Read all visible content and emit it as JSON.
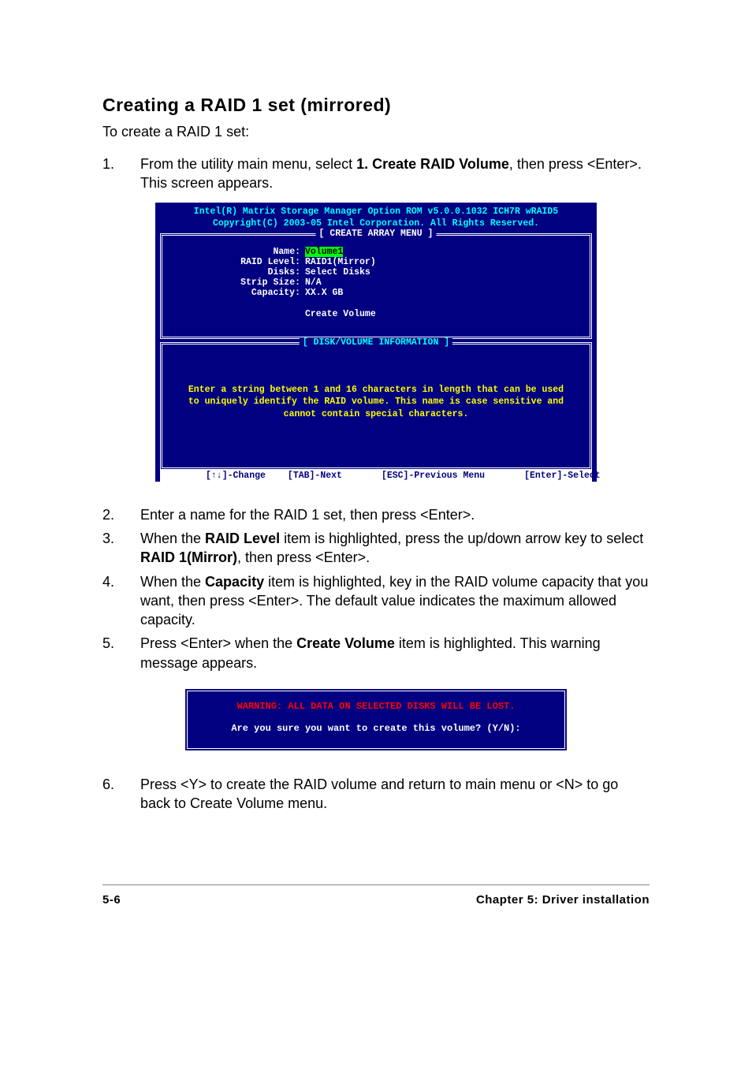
{
  "section_title": "Creating a RAID 1 set (mirrored)",
  "intro": "To create a RAID 1 set:",
  "steps": {
    "s1": {
      "num": "1.",
      "pre": "From the utility main menu, select ",
      "bold": "1. Create RAID Volume",
      "post": ", then press <Enter>. This screen appears."
    },
    "s2": {
      "num": "2.",
      "text": "Enter a name for the RAID 1 set, then press <Enter>."
    },
    "s3": {
      "num": "3.",
      "pre": "When the ",
      "bold1": "RAID Level",
      "mid": " item is highlighted, press the up/down arrow key to select ",
      "bold2": "RAID 1(Mirror)",
      "post": ", then press <Enter>."
    },
    "s4": {
      "num": "4.",
      "pre": "When the ",
      "bold": "Capacity",
      "post": " item is highlighted, key in the RAID volume capacity that you want, then press <Enter>. The default value indicates the maximum allowed capacity."
    },
    "s5": {
      "num": "5.",
      "pre": "Press <Enter> when the ",
      "bold": "Create Volume",
      "post": " item is highlighted. This warning message appears."
    },
    "s6": {
      "num": "6.",
      "text": "Press <Y> to create the RAID volume and return to main menu or <N> to go back to Create Volume menu."
    }
  },
  "terminal": {
    "header1": "Intel(R) Matrix Storage Manager Option ROM v5.0.0.1032 ICH7R wRAID5",
    "header2": "Copyright(C) 2003-05 Intel Corporation. All Rights Reserved.",
    "create_label": "[ CREATE ARRAY MENU ]",
    "rows": {
      "name": {
        "k": "Name:",
        "v": "Volume1"
      },
      "raid": {
        "k": "RAID Level:",
        "v": "RAID1(Mirror)"
      },
      "disks": {
        "k": "Disks:",
        "v": "Select Disks"
      },
      "strip": {
        "k": "Strip Size:",
        "v": "N/A"
      },
      "cap": {
        "k": "Capacity:",
        "v": "XX.X  GB"
      }
    },
    "create_volume": "Create Volume",
    "info_label": "[ DISK/VOLUME INFORMATION ]",
    "help1": "Enter a string between 1 and 16 characters in length that can be used",
    "help2": "to uniquely identify the RAID volume. This name is case sensitive and",
    "help3": "cannot contain special characters.",
    "foot_change": "[↑↓]-Change",
    "foot_next": "[TAB]-Next",
    "foot_prev": "[ESC]-Previous Menu",
    "foot_select": "[Enter]-Select"
  },
  "warn": {
    "red": "WARNING: ALL DATA ON SELECTED DISKS WILL BE LOST.",
    "white": "Are you sure you want to create this volume? (Y/N):"
  },
  "footer": {
    "left": "5-6",
    "right": "Chapter 5: Driver installation"
  },
  "colors": {
    "terminal_bg": "#000080",
    "terminal_cyan": "#00ffff",
    "terminal_white": "#ffffff",
    "terminal_yellow": "#ffff00",
    "terminal_green_bg": "#00ff00",
    "warn_red": "#ff0000",
    "page_bg": "#ffffff",
    "text": "#000000"
  }
}
